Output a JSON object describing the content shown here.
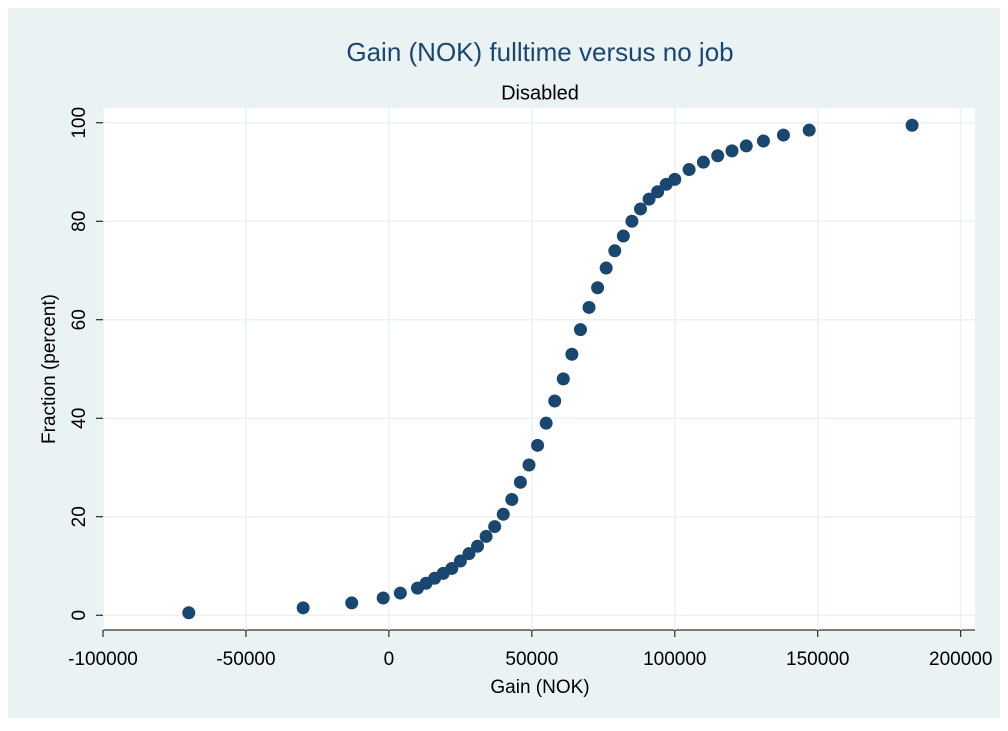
{
  "chart_data": {
    "type": "scatter",
    "title": "Gain (NOK) fulltime versus no job",
    "subtitle": "Disabled",
    "x_label": "Gain (NOK)",
    "y_label": "Fraction (percent)",
    "color": "#1a476f",
    "grid": true,
    "xlim": [
      -100000,
      205000
    ],
    "ylim": [
      -3,
      103
    ],
    "xticks": [
      -100000,
      -50000,
      0,
      50000,
      100000,
      150000,
      200000
    ],
    "yticks": [
      0,
      20,
      40,
      60,
      80,
      100
    ],
    "series": [
      {
        "name": "Fraction (percent)",
        "color": "#1a476f",
        "x": [
          -70000,
          -30000,
          -13000,
          -2000,
          4000,
          10000,
          13000,
          16000,
          19000,
          22000,
          25000,
          28000,
          31000,
          34000,
          37000,
          40000,
          43000,
          46000,
          49000,
          52000,
          55000,
          58000,
          61000,
          64000,
          67000,
          70000,
          73000,
          76000,
          79000,
          82000,
          85000,
          88000,
          91000,
          94000,
          97000,
          100000,
          105000,
          110000,
          115000,
          120000,
          125000,
          131000,
          138000,
          147000,
          183000
        ],
        "values": [
          0.5,
          1.5,
          2.5,
          3.5,
          4.5,
          5.5,
          6.5,
          7.5,
          8.5,
          9.5,
          11,
          12.5,
          14,
          16,
          18,
          20.5,
          23.5,
          27,
          30.5,
          34.5,
          39,
          43.5,
          48,
          53,
          58,
          62.5,
          66.5,
          70.5,
          74,
          77,
          80,
          82.5,
          84.5,
          86,
          87.5,
          88.5,
          90.5,
          92,
          93.3,
          94.3,
          95.3,
          96.3,
          97.5,
          98.5,
          99.5
        ]
      }
    ]
  }
}
